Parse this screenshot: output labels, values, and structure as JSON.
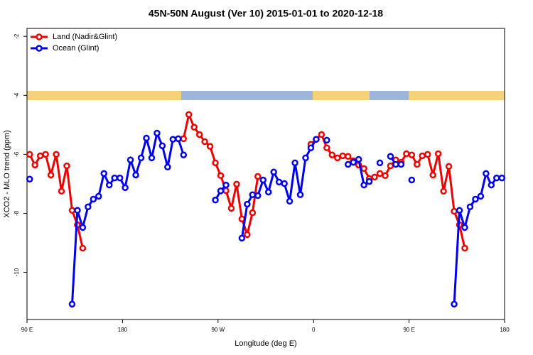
{
  "chart_data": {
    "type": "line",
    "title": "45N-50N August (Ver 10)   2015-01-01 to 2020-12-18",
    "x_label": "Longitude (deg E)",
    "y_label": "XCO2 - MLO trend (ppm)",
    "xlim": [
      90,
      540
    ],
    "ylim": [
      -11.6,
      -1.73
    ],
    "xticks": [
      {
        "value": 90,
        "label": "90 E"
      },
      180,
      {
        "value": 270,
        "label": "90 W"
      },
      {
        "value": 360,
        "label": "0"
      },
      {
        "value": 450,
        "label": "90 E"
      },
      {
        "value": 540,
        "label": "180"
      }
    ],
    "yticks": [
      -2,
      -4,
      -6,
      -8,
      -10
    ],
    "legend": "top-left",
    "series": [
      {
        "name": "Land (Nadir&Glint)",
        "color": "#ee0000",
        "x": [
          92.5,
          97.5,
          102.5,
          107.5,
          112.5,
          117.5,
          122.5,
          127.5,
          132.5,
          137.5,
          142.5,
          null,
          237.5,
          242.5,
          247.5,
          252.5,
          257.5,
          262.5,
          267.5,
          272.5,
          277.5,
          282.5,
          287.5,
          292.5,
          297.5,
          302.5,
          307.5,
          null,
          357.5,
          362.5,
          367.5,
          372.5,
          377.5,
          382.5,
          387.5,
          392.5,
          397.5,
          402.5,
          407.5,
          412.5,
          417.5,
          422.5,
          427.5,
          432.5,
          437.5,
          442.5,
          447.5,
          452.5,
          457.5,
          462.5,
          467.5,
          472.5,
          477.5,
          482.5,
          487.5,
          492.5,
          497.5,
          502.5
        ],
        "values": [
          -6.0,
          -6.36,
          -6.05,
          -6.0,
          -6.7,
          -6.0,
          -7.25,
          -6.39,
          -7.9,
          -8.39,
          -9.18,
          null,
          -5.47,
          -4.65,
          -5.08,
          -5.33,
          -5.57,
          -5.73,
          -6.29,
          -6.72,
          -7.23,
          -7.83,
          -7.01,
          -8.19,
          -8.72,
          -7.98,
          -6.75,
          null,
          -5.66,
          -5.49,
          -5.33,
          -5.78,
          -6.02,
          -6.12,
          -6.05,
          -6.07,
          -6.22,
          -6.36,
          -6.48,
          -6.82,
          -6.77,
          -6.65,
          -6.72,
          -6.39,
          -6.19,
          -6.27,
          -5.98,
          -6.02,
          -6.34,
          -6.05,
          -6.0,
          -6.7,
          -5.98,
          -7.25,
          -6.41,
          -7.93,
          -8.39,
          -9.18
        ]
      },
      {
        "name": "Ocean (Glint)",
        "color": "#0000ee",
        "x": [
          92.5,
          null,
          132.5,
          137.5,
          142.5,
          147.5,
          152.5,
          157.5,
          162.5,
          167.5,
          172.5,
          177.5,
          182.5,
          187.5,
          192.5,
          197.5,
          202.5,
          207.5,
          212.5,
          217.5,
          222.5,
          227.5,
          232.5,
          237.5,
          null,
          267.5,
          272.5,
          277.5,
          null,
          292.5,
          297.5,
          302.5,
          307.5,
          312.5,
          317.5,
          322.5,
          327.5,
          332.5,
          337.5,
          342.5,
          347.5,
          352.5,
          357.5,
          362.5,
          null,
          372.5,
          null,
          392.5,
          397.5,
          402.5,
          407.5,
          412.5,
          null,
          422.5,
          null,
          432.5,
          437.5,
          442.5,
          null,
          452.5,
          null,
          492.5,
          497.5,
          502.5,
          507.5,
          512.5,
          517.5,
          522.5,
          527.5,
          532.5,
          537.5
        ],
        "values": [
          -6.84,
          null,
          -11.08,
          -7.9,
          -8.48,
          -7.78,
          -7.52,
          -7.42,
          -6.65,
          -7.04,
          -6.8,
          -6.8,
          -7.13,
          -6.19,
          -6.7,
          -6.12,
          -5.45,
          -6.12,
          -5.28,
          -5.71,
          -6.43,
          -5.49,
          -5.47,
          -6.02,
          null,
          -7.55,
          -7.24,
          -7.04,
          null,
          -8.84,
          -7.69,
          -7.37,
          -7.4,
          -6.87,
          -7.28,
          -6.6,
          -6.94,
          -6.99,
          -7.59,
          -6.29,
          -7.37,
          -6.12,
          -5.78,
          -5.49,
          null,
          -5.52,
          null,
          -6.34,
          -6.27,
          -6.17,
          -7.04,
          -6.92,
          null,
          -6.29,
          null,
          -6.07,
          -6.34,
          -6.34,
          null,
          -6.87,
          null,
          -11.08,
          -7.9,
          -8.48,
          -7.78,
          -7.52,
          -7.42,
          -6.65,
          -7.04,
          -6.8,
          -6.8
        ]
      }
    ]
  }
}
